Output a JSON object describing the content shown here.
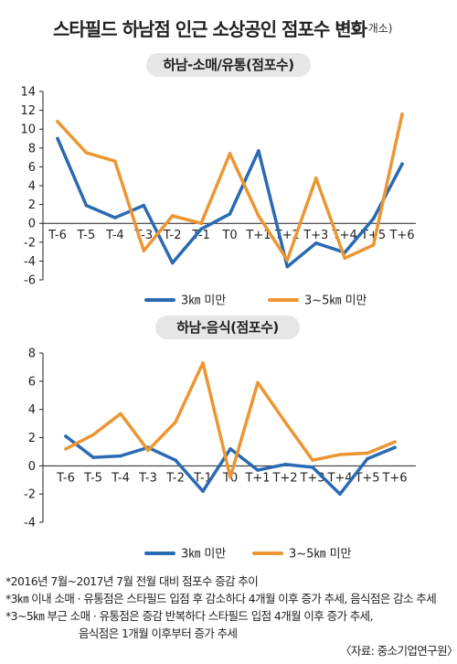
{
  "title": "스타필드 하남점 인근 소상공인 점포수 변화",
  "unit": "(단위: 개소)",
  "colors": {
    "blue": "#2a6ab3",
    "orange": "#ec9633",
    "panel_bg": "#e6e6e6"
  },
  "notes": [
    "*2016년 7월~2017년 7월 전월 대비 점포수 증감 추이",
    "*3㎞ 이내 소매 · 유통점은 스타필드 입점 후 감소하다 4개월 이후 증가 추세, 음식점은 감소 추세",
    "*3~5㎞ 부근 소매 · 유통점은 증감 반복하다 스타필드 입점 4개월 이후 증가 추세,",
    "음식점은 1개월 이후부터 증가 추세"
  ],
  "source": "〈자료: 중소기업연구원〉",
  "chart_data": [
    {
      "type": "line",
      "title": "하남-소매/유통(점포수)",
      "categories": [
        "T-6",
        "T-5",
        "T-4",
        "T-3",
        "T-2",
        "T-1",
        "T0",
        "T+1",
        "T+2",
        "T+3",
        "T+4",
        "T+5",
        "T+6"
      ],
      "ylim": [
        -6,
        14
      ],
      "yticks": [
        14,
        12,
        10,
        8,
        6,
        4,
        2,
        0,
        -2,
        -4,
        -6
      ],
      "grid": false,
      "legend_position": "bottom",
      "series": [
        {
          "name": "3㎞ 미만",
          "color": "#2a6ab3",
          "values": [
            9,
            1.9,
            0.6,
            1.9,
            -4.2,
            -0.6,
            1,
            7.7,
            -4.6,
            -2.1,
            -3.1,
            0.5,
            6.3
          ]
        },
        {
          "name": "3~5㎞ 미만",
          "color": "#ec9633",
          "values": [
            10.8,
            7.5,
            6.6,
            -2.9,
            0.8,
            0,
            7.4,
            0.8,
            -3.9,
            4.8,
            -3.7,
            -2.3,
            11.6
          ]
        }
      ]
    },
    {
      "type": "line",
      "title": "하남-음식(점포수)",
      "categories": [
        "T-6",
        "T-5",
        "T-4",
        "T-3",
        "T-2",
        "T-1",
        "T0",
        "T+1",
        "T+2",
        "T+3",
        "T+4",
        "T+5",
        "T+6"
      ],
      "ylim": [
        -4,
        8
      ],
      "yticks": [
        8,
        6,
        4,
        2,
        0,
        -2,
        -4
      ],
      "grid": false,
      "legend_position": "bottom",
      "series": [
        {
          "name": "3㎞ 미만",
          "color": "#2a6ab3",
          "values": [
            2.1,
            0.6,
            0.7,
            1.3,
            0.4,
            -1.8,
            1.2,
            -0.3,
            0.1,
            -0.1,
            -2,
            0.5,
            1.3
          ]
        },
        {
          "name": "3~5㎞ 미만",
          "color": "#ec9633",
          "values": [
            1.2,
            2.2,
            3.7,
            1.1,
            3.1,
            7.3,
            -0.8,
            5.9,
            3.1,
            0.4,
            0.8,
            0.9,
            1.7
          ]
        }
      ]
    }
  ]
}
